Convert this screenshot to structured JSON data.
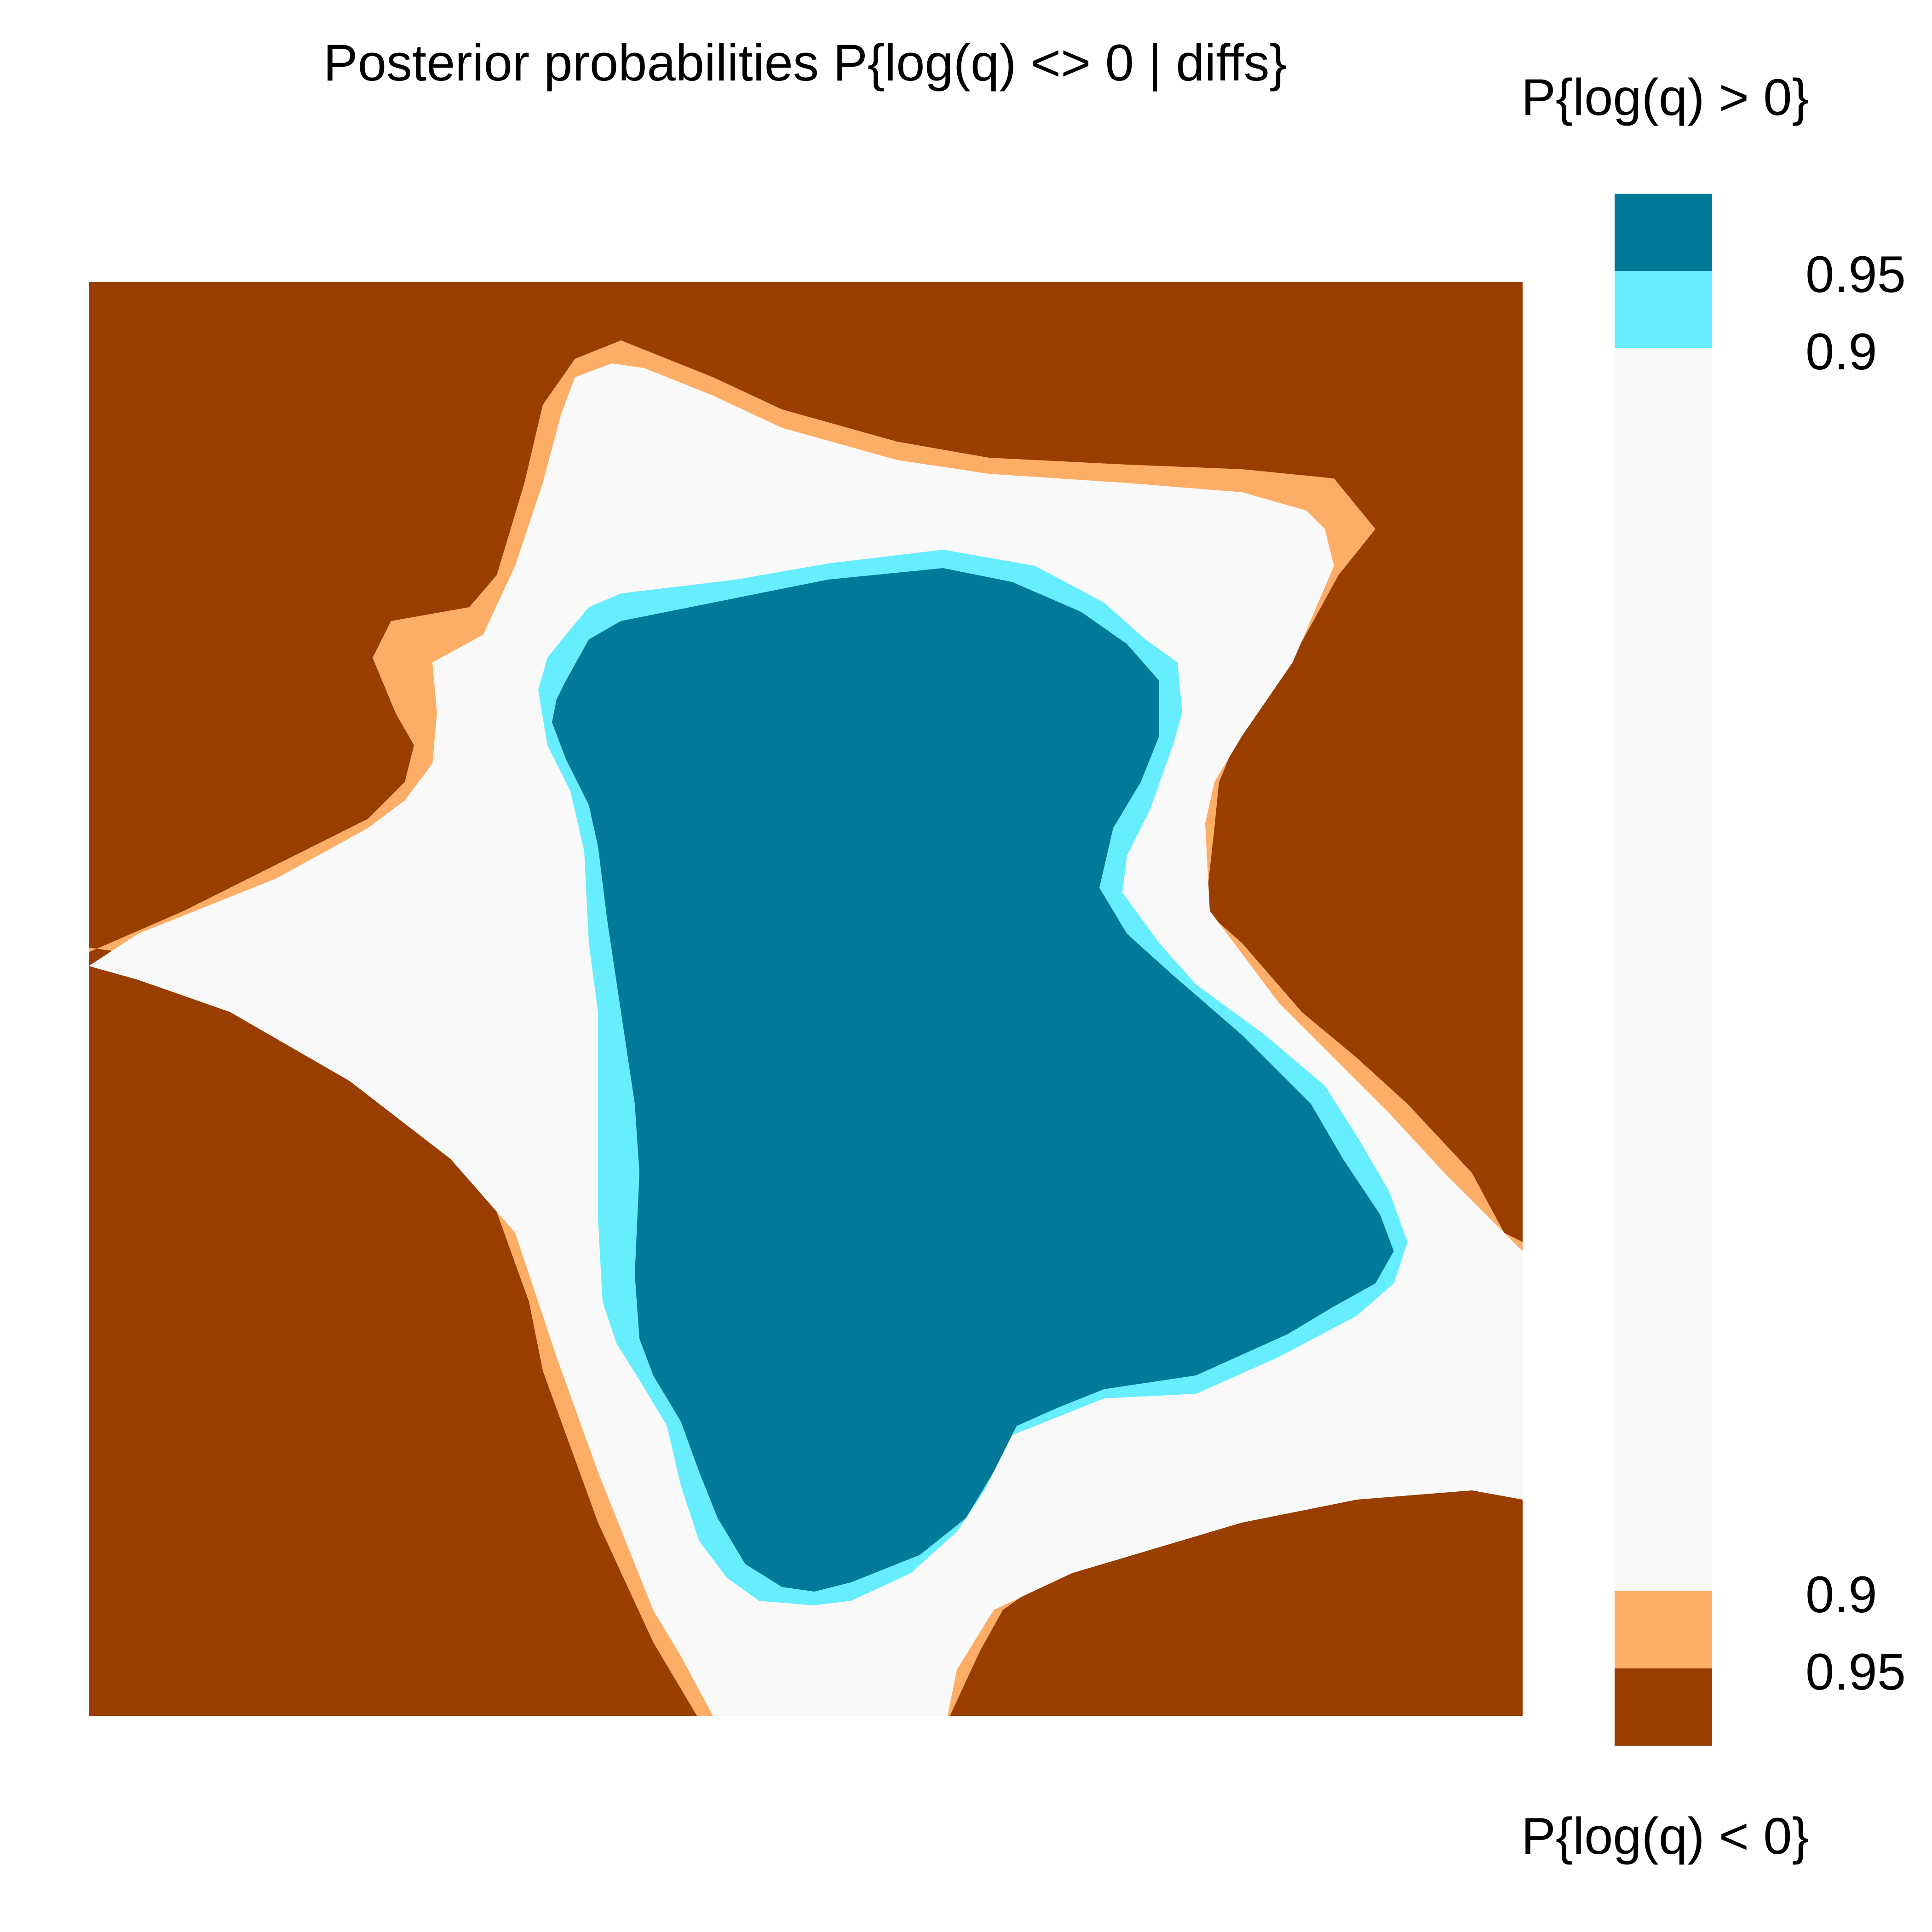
{
  "chart_data": {
    "type": "heatmap",
    "title": "Posterior probabilities P{log(q) <> 0 | diffs}",
    "xlabel": "",
    "ylabel": "",
    "legend": {
      "position": "right",
      "title_top": "P{log(q) > 0}",
      "title_bottom": "P{log(q) < 0}",
      "classes": [
        {
          "name": "positive_95",
          "threshold": "0.95",
          "color": "#017A9A"
        },
        {
          "name": "positive_90",
          "threshold": "0.9",
          "color": "#66EEFF"
        },
        {
          "name": "none",
          "threshold": "",
          "color": "#F9F9F9"
        },
        {
          "name": "negative_90",
          "threshold": "0.9",
          "color": "#FDAE66"
        },
        {
          "name": "negative_95",
          "threshold": "0.95",
          "color": "#993D00"
        }
      ]
    },
    "regions": [
      {
        "class": "negative_95",
        "shape": "full-background"
      },
      {
        "class": "negative_90",
        "shape": "cross-outer"
      },
      {
        "class": "none",
        "shape": "cross-inner"
      },
      {
        "class": "positive_90",
        "shape": "central-outer"
      },
      {
        "class": "positive_95",
        "shape": "central-inner"
      }
    ]
  }
}
